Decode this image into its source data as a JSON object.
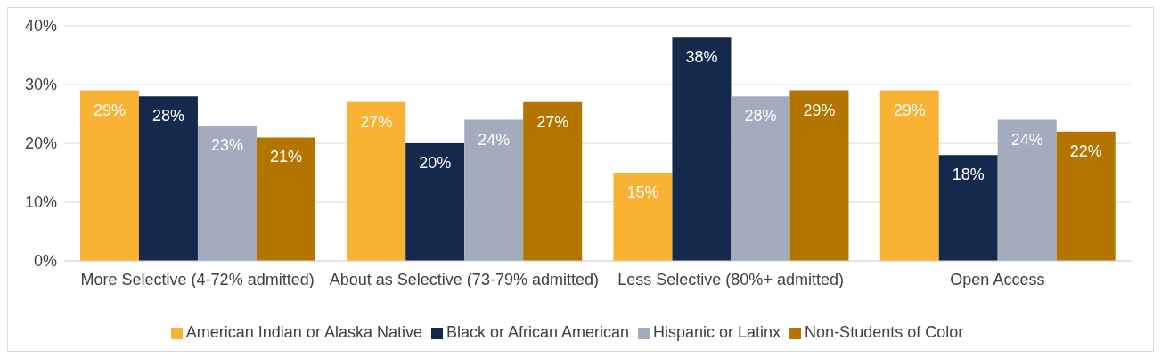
{
  "chart_data": {
    "type": "bar",
    "categories": [
      "More Selective (4-72% admitted)",
      "About as Selective (73-79% admitted)",
      "Less Selective (80%+ admitted)",
      "Open Access"
    ],
    "series": [
      {
        "name": "American Indian or Alaska Native",
        "color": "#f9b233",
        "values": [
          29,
          27,
          15,
          29
        ],
        "value_labels": [
          "29%",
          "27%",
          "15%",
          "29%"
        ]
      },
      {
        "name": "Black or African American",
        "color": "#14294b",
        "values": [
          28,
          20,
          38,
          18
        ],
        "value_labels": [
          "28%",
          "20%",
          "38%",
          "18%"
        ]
      },
      {
        "name": "Hispanic or Latinx",
        "color": "#a2acbd",
        "values": [
          23,
          24,
          28,
          24
        ],
        "value_labels": [
          "23%",
          "24%",
          "28%",
          "24%"
        ]
      },
      {
        "name": "Non-Students of Color",
        "color": "#b37400",
        "values": [
          21,
          27,
          29,
          22
        ],
        "value_labels": [
          "21%",
          "27%",
          "29%",
          "22%"
        ]
      }
    ],
    "ylim": [
      0,
      40
    ],
    "yticks": [
      {
        "value": 0,
        "label": "0%"
      },
      {
        "value": 10,
        "label": "10%"
      },
      {
        "value": 20,
        "label": "20%"
      },
      {
        "value": 30,
        "label": "30%"
      },
      {
        "value": 40,
        "label": "40%"
      }
    ],
    "grid": "y",
    "legend": "bottom"
  }
}
